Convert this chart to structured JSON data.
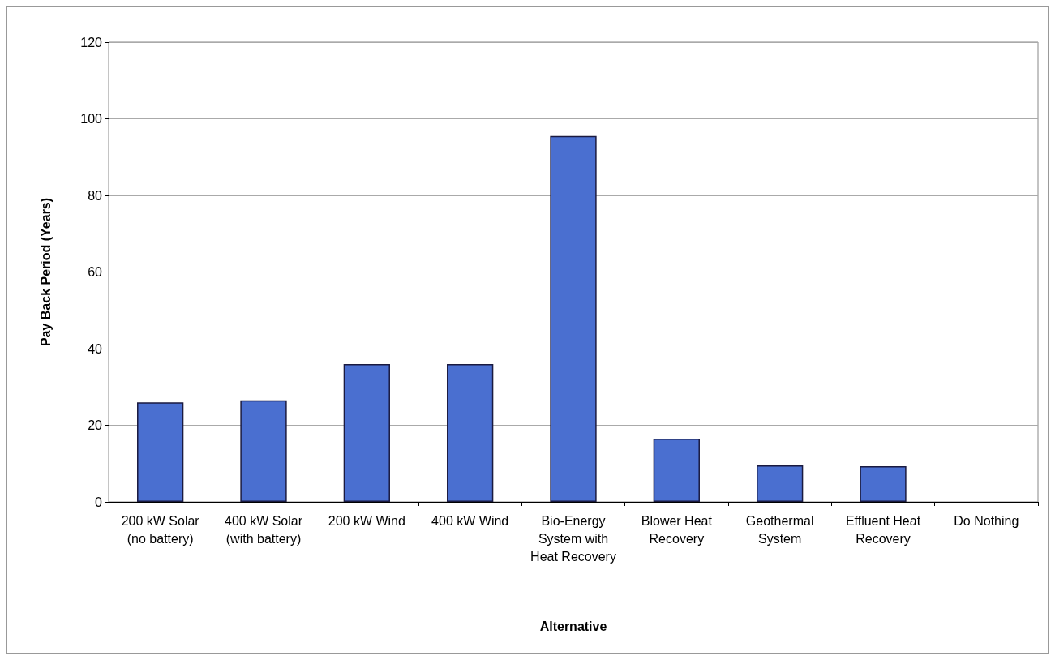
{
  "chart_data": {
    "type": "bar",
    "xlabel": "Alternative",
    "ylabel": "Pay Back Period (Years)",
    "categories": [
      "200 kW Solar (no battery)",
      "400 kW Solar (with battery)",
      "200 kW Wind",
      "400 kW Wind",
      "Bio-Energy System with Heat Recovery",
      "Blower Heat Recovery",
      "Geothermal System",
      "Effluent Heat Recovery",
      "Do Nothing"
    ],
    "values": [
      26,
      26.5,
      36,
      36,
      95.5,
      16.5,
      9.5,
      9.3,
      0
    ],
    "color": "#4a6fd0",
    "ylim": [
      0,
      120
    ],
    "yticks": [
      0,
      20,
      40,
      60,
      80,
      100,
      120
    ],
    "grid": "y"
  }
}
